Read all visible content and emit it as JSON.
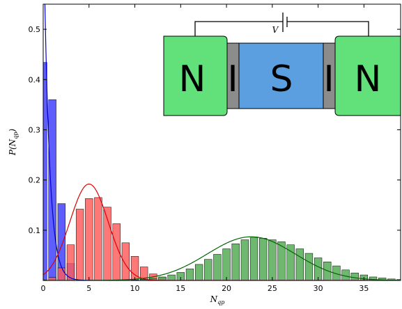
{
  "chart_data": {
    "type": "bar",
    "xlabel": "N",
    "xlabel_sub": "qp",
    "ylabel": "P(N",
    "ylabel_sub": "qp",
    "ylabel_close": ")",
    "xlim": [
      0,
      39
    ],
    "ylim": [
      0,
      0.55
    ],
    "xticks": [
      0,
      5,
      10,
      15,
      20,
      25,
      30,
      35
    ],
    "yticks": [
      0.1,
      0.2,
      0.3,
      0.4,
      0.5
    ],
    "grid": false,
    "series": [
      {
        "color": "#3b3bff",
        "curve_color": "#0000cc",
        "x": [
          0,
          1,
          2,
          3
        ],
        "values": [
          0.434,
          0.36,
          0.153,
          0.034
        ]
      },
      {
        "color": "#ff5a5a",
        "curve_color": "#dd0000",
        "x": [
          0,
          1,
          2,
          3,
          4,
          5,
          6,
          7,
          8,
          9,
          10,
          11,
          12,
          13
        ],
        "values": [
          0.001,
          0.006,
          0.025,
          0.071,
          0.142,
          0.163,
          0.165,
          0.146,
          0.113,
          0.075,
          0.048,
          0.027,
          0.013,
          0.006
        ]
      },
      {
        "color": "#4fa84f",
        "curve_color": "#006600",
        "x": [
          10,
          11,
          12,
          13,
          14,
          15,
          16,
          17,
          18,
          19,
          20,
          21,
          22,
          23,
          24,
          25,
          26,
          27,
          28,
          29,
          30,
          31,
          32,
          33,
          34,
          35,
          36,
          37,
          38,
          39
        ],
        "values": [
          0.001,
          0.002,
          0.004,
          0.007,
          0.011,
          0.016,
          0.023,
          0.032,
          0.042,
          0.052,
          0.063,
          0.073,
          0.081,
          0.085,
          0.084,
          0.081,
          0.077,
          0.071,
          0.063,
          0.054,
          0.045,
          0.037,
          0.029,
          0.021,
          0.015,
          0.011,
          0.007,
          0.005,
          0.003,
          0.002
        ]
      }
    ],
    "curves": [
      {
        "type": "exponential",
        "peak": 0.75,
        "decay": 0.6
      },
      {
        "type": "gaussian",
        "mean": 5,
        "sigma": 2.1,
        "peak": 0.192
      },
      {
        "type": "gaussian",
        "mean": 22.7,
        "sigma": 4.8,
        "peak": 0.087
      }
    ]
  },
  "inset": {
    "letters": [
      "N",
      "I",
      "S",
      "I",
      "N"
    ],
    "voltage_label": "V",
    "colors": {
      "normal": "#62e07a",
      "insulator": "#8c8c8c",
      "superconductor": "#5b9fe0"
    }
  }
}
